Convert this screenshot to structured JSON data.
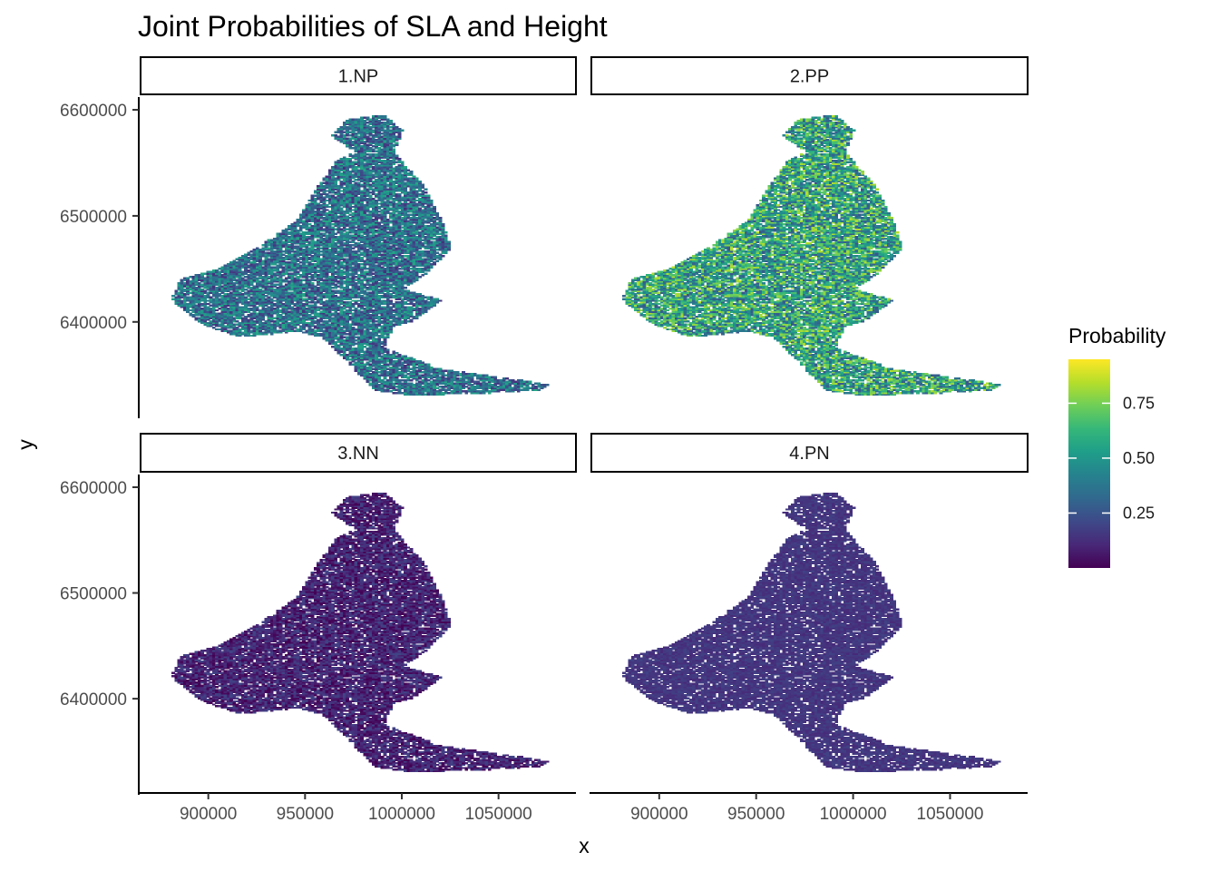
{
  "chart_data": {
    "type": "heatmap",
    "title": "Joint Probabilities of SLA and Height",
    "xlabel": "x",
    "ylabel": "y",
    "xlim": [
      865000,
      1090000
    ],
    "ylim": [
      6310000,
      6612000
    ],
    "x_ticks": [
      900000,
      950000,
      1000000,
      1050000
    ],
    "x_tick_labels": [
      "900000",
      "950000",
      "1000000",
      "1050000"
    ],
    "y_ticks": [
      6400000,
      6500000,
      6600000
    ],
    "y_tick_labels": [
      "6400000",
      "6500000",
      "6600000"
    ],
    "legend": {
      "title": "Probability",
      "placement": "right",
      "range": [
        0.0,
        0.95
      ],
      "breaks": [
        0.25,
        0.5,
        0.75
      ],
      "labels": [
        "0.25",
        "0.50",
        "0.75"
      ],
      "colors": [
        "#440154",
        "#482878",
        "#3e4989",
        "#31688e",
        "#26828e",
        "#1f9e89",
        "#35b779",
        "#6ece58",
        "#b5de2b",
        "#fde725"
      ]
    },
    "facets": [
      {
        "label": "1.NP",
        "mean_probability": 0.35,
        "spread": 0.22
      },
      {
        "label": "2.PP",
        "mean_probability": 0.55,
        "spread": 0.3
      },
      {
        "label": "3.NN",
        "mean_probability": 0.08,
        "spread": 0.12
      },
      {
        "label": "4.PN",
        "mean_probability": 0.15,
        "spread": 0.04
      }
    ],
    "region_outline": [
      [
        880000,
        6420000
      ],
      [
        885000,
        6440000
      ],
      [
        905000,
        6450000
      ],
      [
        925000,
        6470000
      ],
      [
        945000,
        6495000
      ],
      [
        955000,
        6525000
      ],
      [
        965000,
        6550000
      ],
      [
        975000,
        6560000
      ],
      [
        963000,
        6575000
      ],
      [
        970000,
        6590000
      ],
      [
        990000,
        6595000
      ],
      [
        1000000,
        6580000
      ],
      [
        995000,
        6560000
      ],
      [
        1002000,
        6545000
      ],
      [
        1010000,
        6530000
      ],
      [
        1020000,
        6495000
      ],
      [
        1025000,
        6470000
      ],
      [
        1012000,
        6445000
      ],
      [
        1000000,
        6430000
      ],
      [
        1020000,
        6420000
      ],
      [
        1005000,
        6400000
      ],
      [
        995000,
        6395000
      ],
      [
        990000,
        6375000
      ],
      [
        1020000,
        6355000
      ],
      [
        1060000,
        6345000
      ],
      [
        1075000,
        6340000
      ],
      [
        1070000,
        6335000
      ],
      [
        1040000,
        6332000
      ],
      [
        1005000,
        6330000
      ],
      [
        985000,
        6335000
      ],
      [
        972000,
        6360000
      ],
      [
        958000,
        6385000
      ],
      [
        945000,
        6390000
      ],
      [
        915000,
        6385000
      ],
      [
        895000,
        6398000
      ],
      [
        880000,
        6420000
      ]
    ]
  }
}
